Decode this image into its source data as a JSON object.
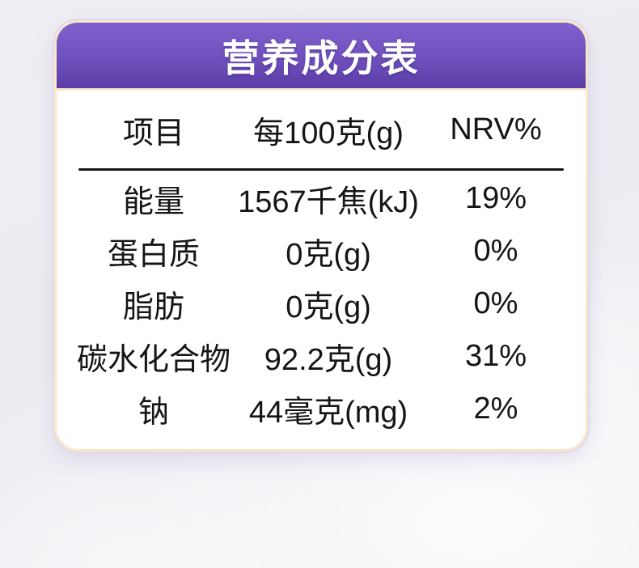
{
  "title": "营养成分表",
  "table": {
    "headers": [
      "项目",
      "每100克(g)",
      "NRV%"
    ],
    "rows": [
      {
        "item": "能量",
        "per100": "1567千焦(kJ)",
        "nrv": "19%"
      },
      {
        "item": "蛋白质",
        "per100": "0克(g)",
        "nrv": "0%"
      },
      {
        "item": "脂肪",
        "per100": "0克(g)",
        "nrv": "0%"
      },
      {
        "item": "碳水化合物",
        "per100": "92.2克(g)",
        "nrv": "31%"
      },
      {
        "item": "钠",
        "per100": "44毫克(mg)",
        "nrv": "2%"
      }
    ]
  },
  "colors": {
    "header_gradient_top": "#7e61cc",
    "header_gradient_bottom": "#5b3da7",
    "card_border": "#f8e7c8",
    "card_background": "#ffffff",
    "text": "#151515",
    "page_background": "#efeef3"
  }
}
